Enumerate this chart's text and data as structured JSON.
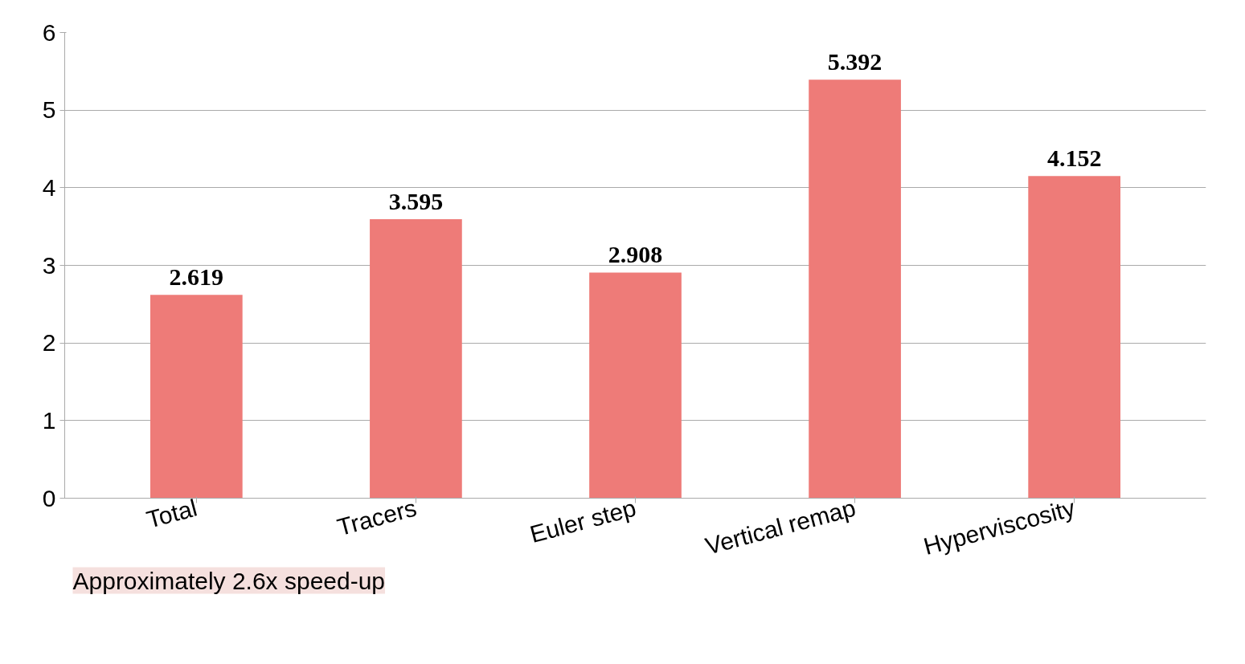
{
  "chart_data": {
    "type": "bar",
    "categories": [
      "Total",
      "Tracers",
      "Euler step",
      "Vertical remap",
      "Hyperviscosity"
    ],
    "values": [
      2.619,
      3.595,
      2.908,
      5.392,
      4.152
    ],
    "color": "#ee7b78",
    "ylim": [
      0,
      6
    ],
    "yticks": [
      0,
      1,
      2,
      3,
      4,
      5,
      6
    ],
    "grid": "y",
    "data_labels": true,
    "annotations": [
      "Approximately 2.6x speed-up"
    ]
  }
}
